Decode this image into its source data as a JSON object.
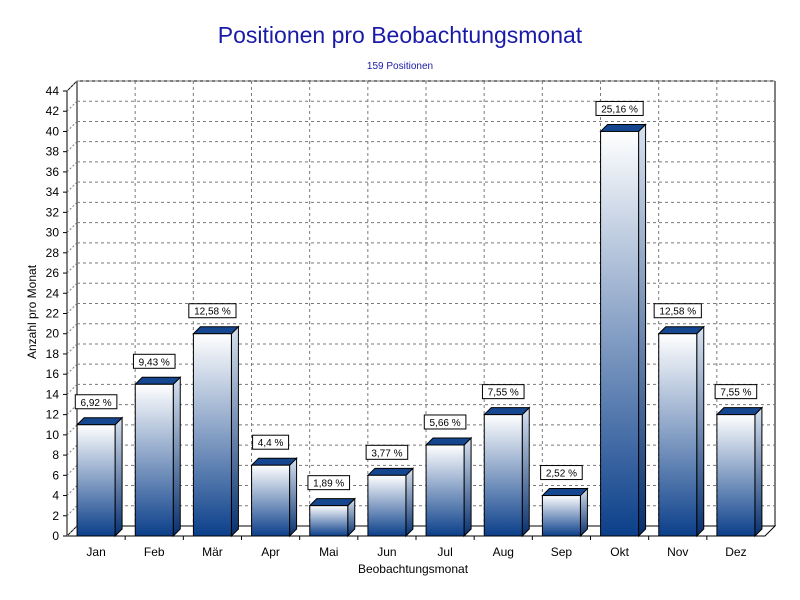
{
  "chart_data": {
    "type": "bar",
    "title": "Positionen pro Beobachtungsmonat",
    "subtitle": "159 Positionen",
    "xlabel": "Beobachtungsmonat",
    "ylabel": "Anzahl pro Monat",
    "categories": [
      "Jan",
      "Feb",
      "Mär",
      "Apr",
      "Mai",
      "Jun",
      "Jul",
      "Aug",
      "Sep",
      "Okt",
      "Nov",
      "Dez"
    ],
    "values": [
      11,
      15,
      20,
      7,
      3,
      6,
      9,
      12,
      4,
      40,
      20,
      12
    ],
    "data_labels": [
      "6,92 %",
      "9,43 %",
      "12,58 %",
      "4,4 %",
      "1,89 %",
      "3,77 %",
      "5,66 %",
      "7,55 %",
      "2,52 %",
      "25,16 %",
      "12,58 %",
      "7,55 %"
    ],
    "ylim": [
      0,
      44
    ],
    "ytick_step": 2,
    "grid": true,
    "legend": "none",
    "colors": {
      "bar_top": "#ffffff",
      "bar_bottom": "#0b3f8a",
      "title": "#1a1aa8",
      "grid": "#808080"
    }
  }
}
